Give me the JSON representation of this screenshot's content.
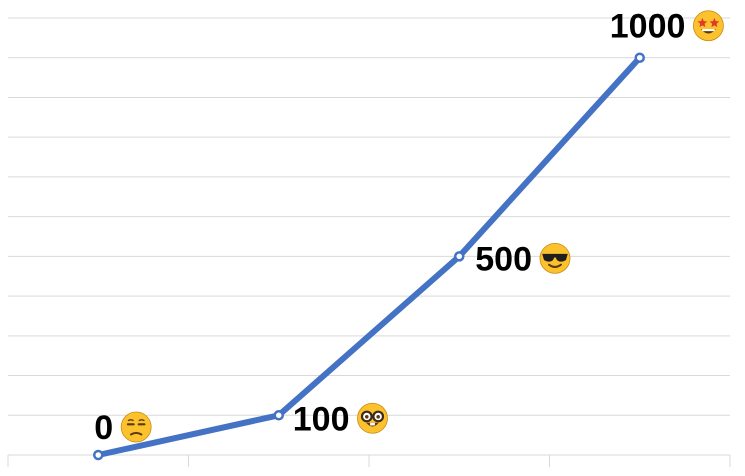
{
  "chart_data": {
    "type": "line",
    "categories": [
      "",
      "",
      "",
      ""
    ],
    "series": [
      {
        "values": [
          0,
          100,
          500,
          1000
        ]
      }
    ],
    "data_labels": [
      "0",
      "100",
      "500",
      "1000"
    ],
    "label_emojis": [
      "unamused-face-icon",
      "nerd-face-icon",
      "sunglasses-face-icon",
      "star-struck-face-icon"
    ],
    "ylim": [
      0,
      1100
    ],
    "grid": true,
    "legend": "none",
    "title": "",
    "xlabel": "",
    "ylabel": "",
    "colors": {
      "line": "#4472c4",
      "grid": "#d9d9d9",
      "emoji_face": "#fcc22d"
    }
  }
}
